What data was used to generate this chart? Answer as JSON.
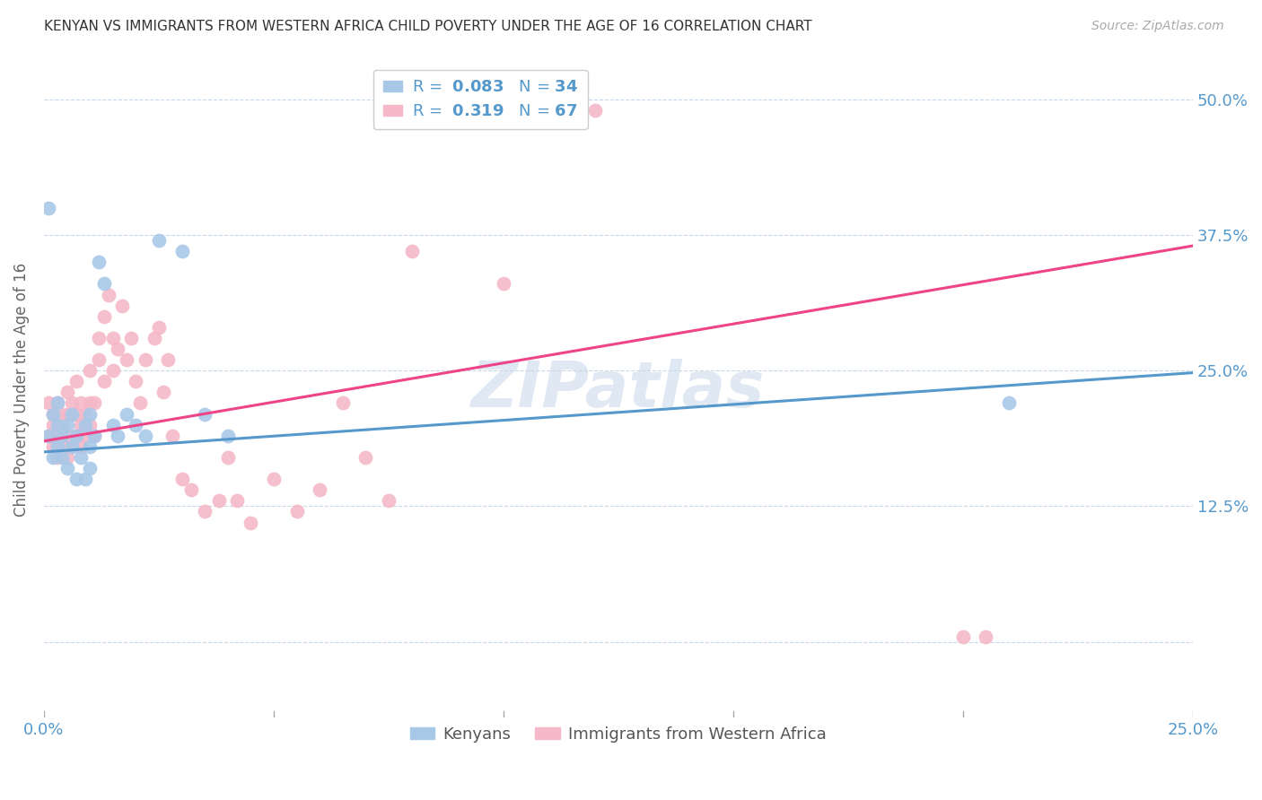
{
  "title": "KENYAN VS IMMIGRANTS FROM WESTERN AFRICA CHILD POVERTY UNDER THE AGE OF 16 CORRELATION CHART",
  "source": "Source: ZipAtlas.com",
  "ylabel": "Child Poverty Under the Age of 16",
  "watermark": "ZIPatlas",
  "blue_scatter_color": "#a8c8e8",
  "pink_scatter_color": "#f5b8c8",
  "blue_line_color": "#5599cc",
  "pink_line_color": "#ee4488",
  "xlim": [
    0.0,
    0.25
  ],
  "ylim": [
    -0.07,
    0.535
  ],
  "yticks": [
    0.0,
    0.125,
    0.25,
    0.375,
    0.5
  ],
  "xticks": [
    0.0,
    0.05,
    0.1,
    0.15,
    0.2,
    0.25
  ],
  "kenyan_x": [
    0.001,
    0.002,
    0.002,
    0.003,
    0.003,
    0.003,
    0.004,
    0.004,
    0.005,
    0.005,
    0.006,
    0.006,
    0.007,
    0.007,
    0.008,
    0.009,
    0.009,
    0.01,
    0.01,
    0.01,
    0.011,
    0.012,
    0.013,
    0.015,
    0.016,
    0.018,
    0.02,
    0.022,
    0.025,
    0.03,
    0.035,
    0.04,
    0.21,
    0.001
  ],
  "kenyan_y": [
    0.19,
    0.17,
    0.21,
    0.18,
    0.2,
    0.22,
    0.17,
    0.19,
    0.16,
    0.2,
    0.18,
    0.21,
    0.15,
    0.19,
    0.17,
    0.15,
    0.2,
    0.18,
    0.16,
    0.21,
    0.19,
    0.35,
    0.33,
    0.2,
    0.19,
    0.21,
    0.2,
    0.19,
    0.37,
    0.36,
    0.21,
    0.19,
    0.22,
    0.4
  ],
  "western_x": [
    0.001,
    0.001,
    0.002,
    0.002,
    0.002,
    0.003,
    0.003,
    0.003,
    0.004,
    0.004,
    0.004,
    0.005,
    0.005,
    0.005,
    0.005,
    0.006,
    0.006,
    0.007,
    0.007,
    0.007,
    0.008,
    0.008,
    0.008,
    0.009,
    0.009,
    0.01,
    0.01,
    0.01,
    0.011,
    0.011,
    0.012,
    0.012,
    0.013,
    0.013,
    0.014,
    0.015,
    0.015,
    0.016,
    0.017,
    0.018,
    0.019,
    0.02,
    0.021,
    0.022,
    0.024,
    0.025,
    0.026,
    0.027,
    0.028,
    0.03,
    0.032,
    0.035,
    0.038,
    0.04,
    0.042,
    0.045,
    0.05,
    0.055,
    0.06,
    0.065,
    0.07,
    0.075,
    0.08,
    0.1,
    0.12,
    0.2,
    0.205
  ],
  "western_y": [
    0.19,
    0.22,
    0.18,
    0.21,
    0.2,
    0.17,
    0.19,
    0.22,
    0.18,
    0.2,
    0.21,
    0.17,
    0.19,
    0.21,
    0.23,
    0.18,
    0.22,
    0.19,
    0.21,
    0.24,
    0.2,
    0.18,
    0.22,
    0.19,
    0.21,
    0.2,
    0.22,
    0.25,
    0.19,
    0.22,
    0.28,
    0.26,
    0.3,
    0.24,
    0.32,
    0.25,
    0.28,
    0.27,
    0.31,
    0.26,
    0.28,
    0.24,
    0.22,
    0.26,
    0.28,
    0.29,
    0.23,
    0.26,
    0.19,
    0.15,
    0.14,
    0.12,
    0.13,
    0.17,
    0.13,
    0.11,
    0.15,
    0.12,
    0.14,
    0.22,
    0.17,
    0.13,
    0.36,
    0.33,
    0.49,
    0.005,
    0.005
  ],
  "blue_line_x": [
    0.0,
    0.25
  ],
  "blue_line_y": [
    0.175,
    0.248
  ],
  "pink_line_x": [
    0.0,
    0.25
  ],
  "pink_line_y": [
    0.185,
    0.365
  ]
}
